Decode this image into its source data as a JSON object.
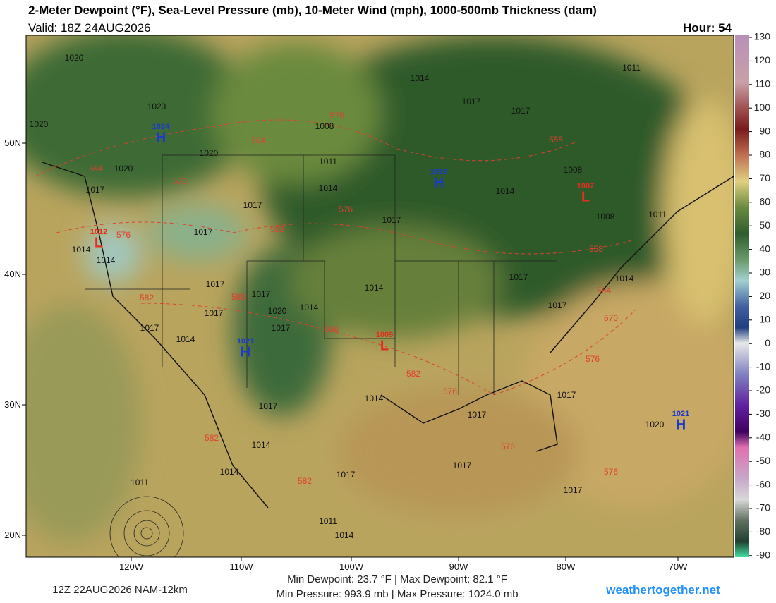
{
  "header": {
    "title": "2-Meter Dewpoint (°F), Sea-Level Pressure (mb), 10-Meter Wind (mph), 1000-500mb Thickness (dam)",
    "valid": "Valid: 18Z 24AUG2026",
    "hour": "Hour: 54"
  },
  "colorbar": {
    "labels": [
      "130",
      "120",
      "110",
      "100",
      "90",
      "80",
      "70",
      "60",
      "50",
      "40",
      "30",
      "20",
      "10",
      "0",
      "-10",
      "-20",
      "-30",
      "-40",
      "-50",
      "-60",
      "-70",
      "-80",
      "-90"
    ]
  },
  "axes": {
    "lon": [
      "120W",
      "110W",
      "100W",
      "90W",
      "80W",
      "70W"
    ],
    "lat": [
      "50N",
      "40N",
      "30N",
      "20N"
    ]
  },
  "pressure_centers": [
    {
      "letter": "H",
      "value": "1024"
    },
    {
      "letter": "H",
      "value": "1019"
    },
    {
      "letter": "L",
      "value": "1007"
    },
    {
      "letter": "L",
      "value": "1012"
    },
    {
      "letter": "H",
      "value": "1021"
    },
    {
      "letter": "L",
      "value": "1009"
    },
    {
      "letter": "H",
      "value": "1021"
    }
  ],
  "isobar_labels": [
    "1020",
    "1023",
    "1020",
    "1020",
    "1020",
    "1017",
    "1014",
    "1017",
    "1017",
    "1011",
    "1008",
    "1011",
    "1014",
    "1008",
    "1014",
    "1008",
    "1011",
    "1017",
    "1017",
    "1017",
    "1014",
    "1014",
    "1017",
    "1017",
    "1017",
    "1020",
    "1014",
    "1014",
    "1017",
    "1014",
    "1017",
    "1017",
    "1014",
    "1017",
    "1017",
    "1014",
    "1017",
    "1017",
    "1020",
    "1014",
    "1014",
    "1017",
    "1017",
    "1017",
    "1011",
    "1011",
    "1014"
  ],
  "thickness_labels": [
    "570",
    "564",
    "558",
    "564",
    "570",
    "576",
    "582",
    "576",
    "558",
    "582",
    "588",
    "588",
    "564",
    "570",
    "582",
    "576",
    "576",
    "582",
    "576",
    "576",
    "582"
  ],
  "footer": {
    "run": "12Z 22AUG2026 NAM-12km",
    "dewpoint": "Min Dewpoint:  23.7 °F | Max Dewpoint:  82.1 °F",
    "pressure": "Min Pressure: 993.9 mb | Max Pressure: 1024.0 mb",
    "site": "weathertogether.net"
  }
}
